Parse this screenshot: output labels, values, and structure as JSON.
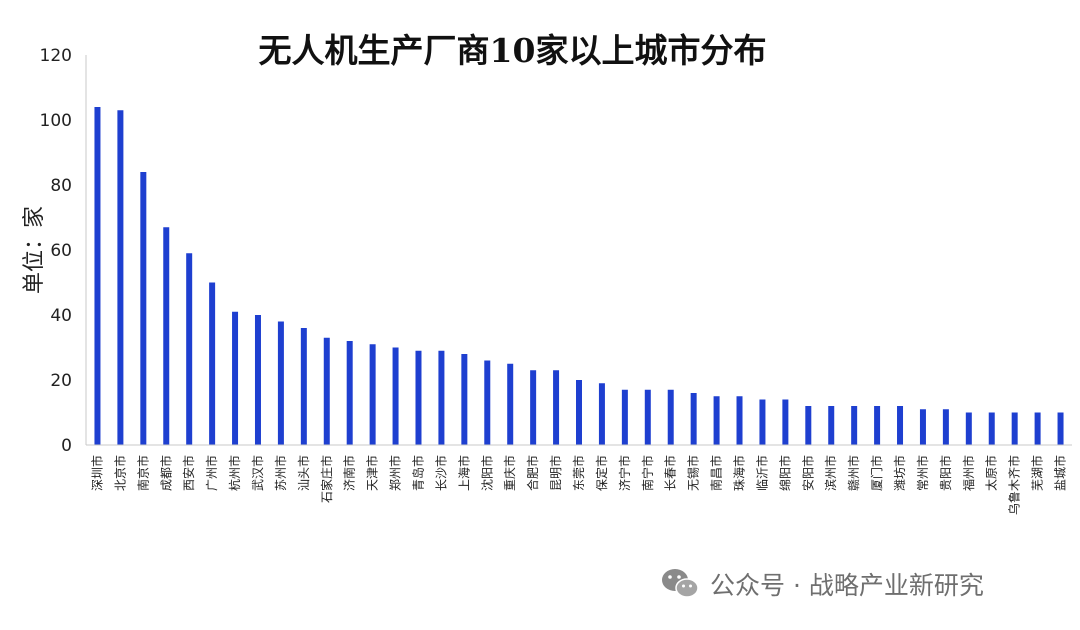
{
  "chart_data": {
    "type": "bar",
    "title": "无人机生产厂商10家以上城市分布",
    "ylabel": "单位：家",
    "xlabel": "",
    "ylim": [
      0,
      120
    ],
    "yticks": [
      0,
      20,
      40,
      60,
      80,
      100,
      120
    ],
    "grid": false,
    "legend": "none",
    "bar_color": "#1e3fd0",
    "categories": [
      "深圳市",
      "北京市",
      "南京市",
      "成都市",
      "西安市",
      "广州市",
      "杭州市",
      "武汉市",
      "苏州市",
      "汕头市",
      "石家庄市",
      "济南市",
      "天津市",
      "郑州市",
      "青岛市",
      "长沙市",
      "上海市",
      "沈阳市",
      "重庆市",
      "合肥市",
      "昆明市",
      "东莞市",
      "保定市",
      "济宁市",
      "南宁市",
      "长春市",
      "无锡市",
      "南昌市",
      "珠海市",
      "临沂市",
      "绵阳市",
      "安阳市",
      "滨州市",
      "赣州市",
      "厦门市",
      "潍坊市",
      "常州市",
      "贵阳市",
      "福州市",
      "太原市",
      "乌鲁木齐市",
      "芜湖市",
      "盐城市"
    ],
    "values": [
      104,
      103,
      84,
      67,
      59,
      50,
      41,
      40,
      38,
      36,
      33,
      32,
      31,
      30,
      29,
      29,
      28,
      26,
      25,
      23,
      23,
      20,
      19,
      17,
      17,
      17,
      16,
      15,
      15,
      14,
      14,
      12,
      12,
      12,
      12,
      12,
      11,
      11,
      10,
      10,
      10,
      10,
      10
    ]
  },
  "watermark": {
    "icon": "wechat-icon",
    "text": "公众号 · 战略产业新研究",
    "color": "#6f6f6f"
  }
}
